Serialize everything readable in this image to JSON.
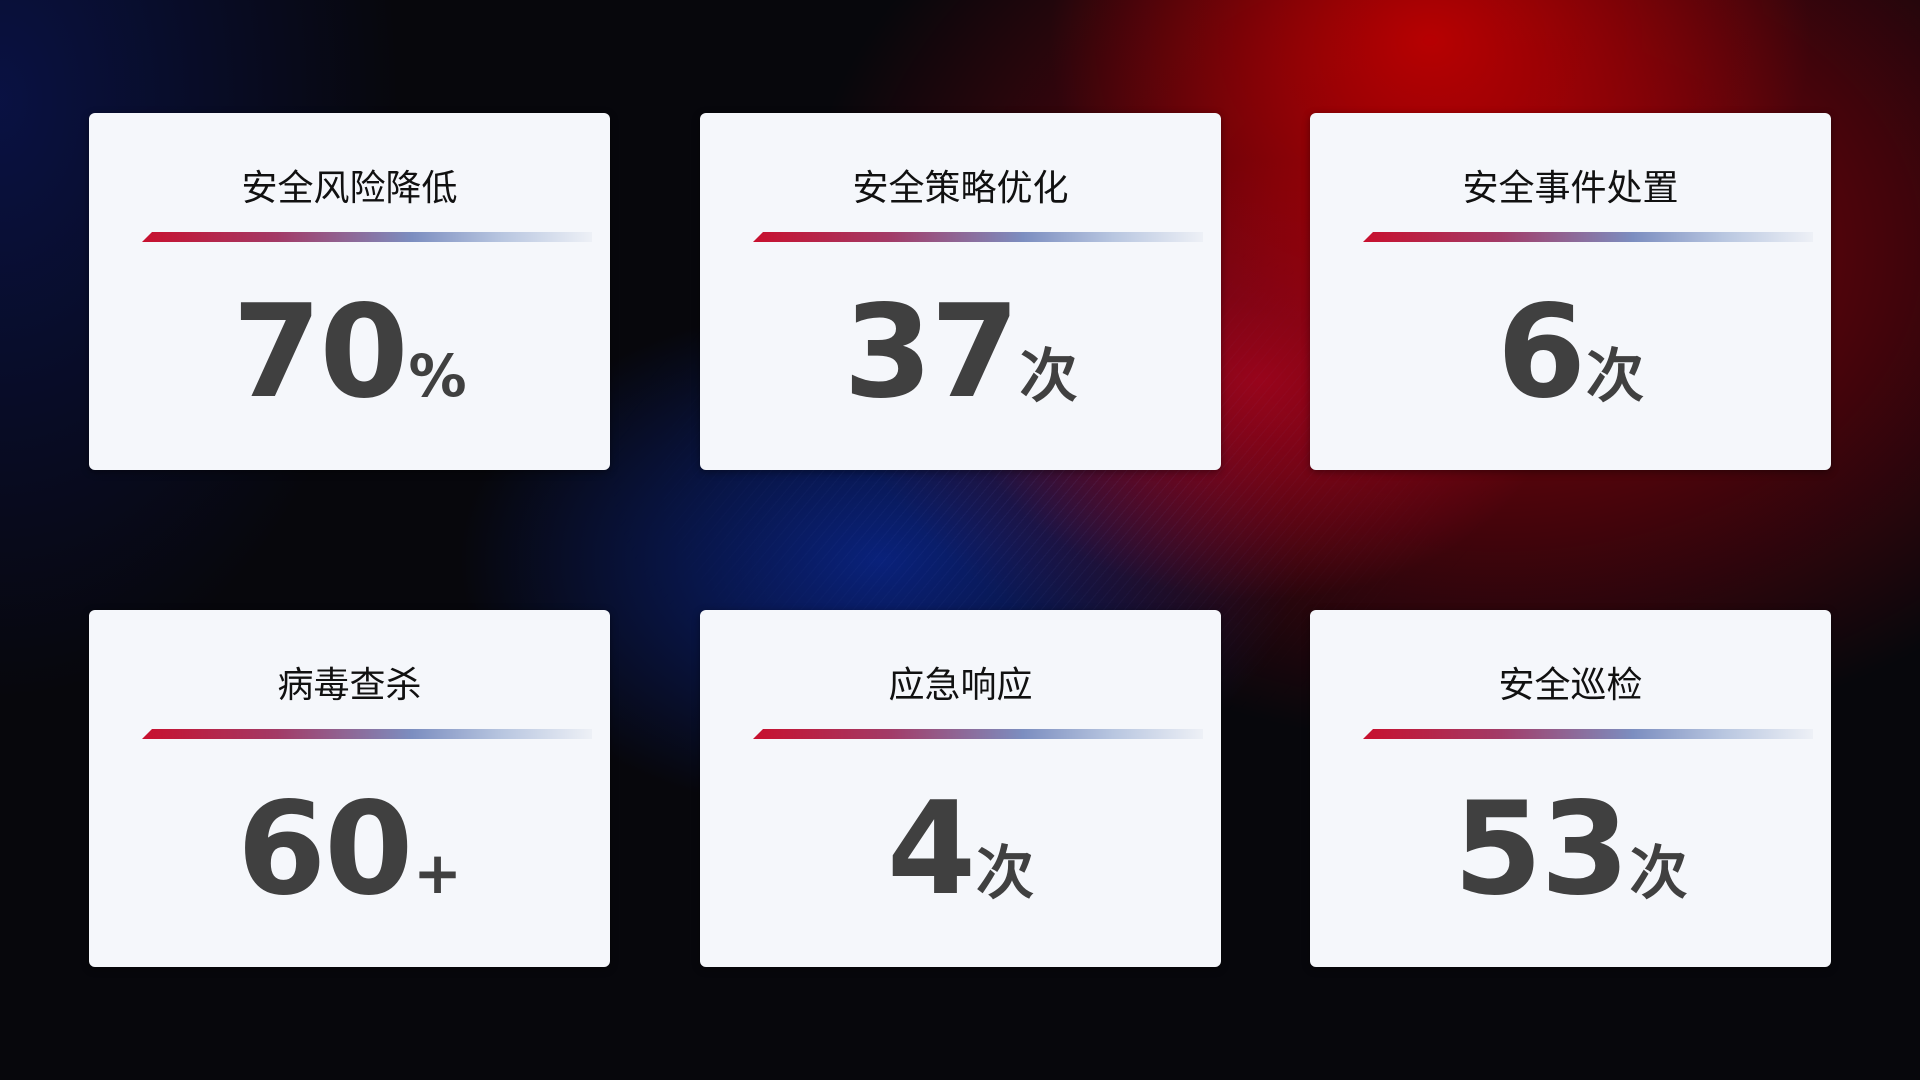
{
  "cards": [
    {
      "title": "安全风险降低",
      "value": "70",
      "unit": "%"
    },
    {
      "title": "安全策略优化",
      "value": "37",
      "unit": "次"
    },
    {
      "title": "安全事件处置",
      "value": "6",
      "unit": "次"
    },
    {
      "title": "病毒查杀",
      "value": "60",
      "unit": "+"
    },
    {
      "title": "应急响应",
      "value": "4",
      "unit": "次"
    },
    {
      "title": "安全巡检",
      "value": "53",
      "unit": "次"
    }
  ],
  "colors": {
    "accent_red": "#c8102e",
    "accent_blue": "#7c8ec0",
    "card_bg": "#f5f7fb",
    "value_text": "#404040"
  }
}
